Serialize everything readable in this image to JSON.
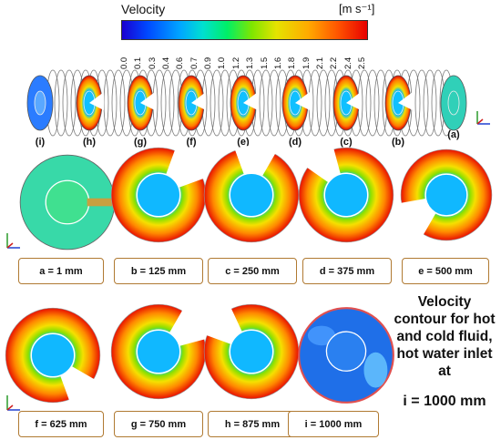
{
  "legend": {
    "title": "Velocity",
    "unit": "[m s⁻¹]",
    "ticks": [
      "0.0",
      "0.1",
      "0.3",
      "0.4",
      "0.6",
      "0.7",
      "0.9",
      "1.0",
      "1.2",
      "1.3",
      "1.5",
      "1.6",
      "1.8",
      "1.9",
      "2.1",
      "2.2",
      "2.4",
      "2.5"
    ],
    "colors": [
      "#1a00d0",
      "#0046ff",
      "#00a8ff",
      "#00e0d0",
      "#00ef66",
      "#7fe600",
      "#e5e300",
      "#ffaa00",
      "#ff5500",
      "#e80000"
    ]
  },
  "pipe_sections": [
    "(i)",
    "(h)",
    "(g)",
    "(f)",
    "(e)",
    "(d)",
    "(c)",
    "(b)",
    "(a)"
  ],
  "panels": [
    {
      "label": "a = 1 mm"
    },
    {
      "label": "b = 125 mm"
    },
    {
      "label": "c = 250 mm"
    },
    {
      "label": "d = 375 mm"
    },
    {
      "label": "e = 500 mm"
    },
    {
      "label": "f = 625 mm"
    },
    {
      "label": "g = 750 mm"
    },
    {
      "label": "h = 875 mm"
    },
    {
      "label": "i = 1000 mm"
    }
  ],
  "note": {
    "text": "Velocity contour for hot and cold fluid, hot water inlet at",
    "last_line": "i = 1000 mm"
  }
}
